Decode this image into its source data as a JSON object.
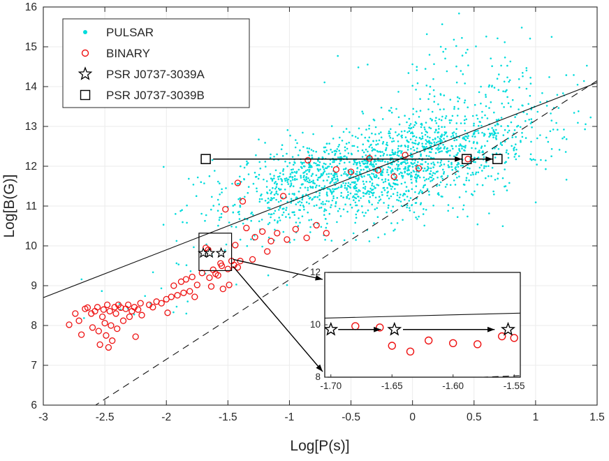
{
  "figure": {
    "background": "#ffffff"
  },
  "axes": {
    "xlabel": "Log[P(s)]",
    "ylabel": "Log[B(G)]"
  },
  "colors": {
    "pulsar": "#00dcdc",
    "binary": "#ee1111",
    "line": "#111111",
    "grid": "#ebebeb",
    "frame": "#262626"
  },
  "legend": {
    "entries": [
      {
        "label": "PULSAR",
        "marker": "cyan-dot"
      },
      {
        "label": "BINARY",
        "marker": "red-open-circle"
      },
      {
        "label": "PSR J0737-3039A",
        "marker": "black-star"
      },
      {
        "label": "PSR J0737-3039B",
        "marker": "black-square"
      }
    ]
  },
  "chart_data": {
    "type": "scatter",
    "title": "",
    "xlabel": "Log[P(s)]",
    "ylabel": "Log[B(G)]",
    "xlim": [
      -3,
      1.5
    ],
    "ylim": [
      6,
      16
    ],
    "xtick_labels": [
      "-3",
      "-2.5",
      "-2",
      "-1.5",
      "-1",
      "-0.5",
      "0",
      "0.5",
      "1",
      "1.5"
    ],
    "ytick_labels": [
      "6",
      "7",
      "8",
      "9",
      "10",
      "11",
      "12",
      "13",
      "14",
      "15",
      "16"
    ],
    "grid": true,
    "series": [
      {
        "name": "PULSAR",
        "marker": "dot",
        "color": "#00dcdc",
        "generated": true,
        "seed": 1337,
        "clusters": [
          {
            "n": 1400,
            "cx": -0.25,
            "cy": 11.95,
            "sx": 0.62,
            "sy": 0.52,
            "tilt": 0.55
          },
          {
            "n": 260,
            "cx": 0.45,
            "cy": 13.05,
            "sx": 0.5,
            "sy": 0.7,
            "tilt": 0.8
          },
          {
            "n": 130,
            "cx": -1.05,
            "cy": 11.1,
            "sx": 0.45,
            "sy": 0.5,
            "tilt": 0.6
          },
          {
            "n": 45,
            "cx": 0.3,
            "cy": 14.55,
            "sx": 0.45,
            "sy": 0.45,
            "tilt": 0.3
          },
          {
            "n": 55,
            "cx": -0.55,
            "cy": 10.7,
            "sx": 0.55,
            "sy": 0.3,
            "tilt": 0.4
          },
          {
            "n": 14,
            "cx": -1.9,
            "cy": 8.95,
            "sx": 0.45,
            "sy": 0.4,
            "tilt": 0.3
          },
          {
            "n": 8,
            "cx": -2.35,
            "cy": 8.55,
            "sx": 0.25,
            "sy": 0.3,
            "tilt": 0
          }
        ]
      },
      {
        "name": "BINARY",
        "marker": "open-circle",
        "color": "#ee1111",
        "points": [
          [
            -2.79,
            8.02
          ],
          [
            -2.74,
            8.3
          ],
          [
            -2.71,
            8.12
          ],
          [
            -2.69,
            7.77
          ],
          [
            -2.66,
            8.42
          ],
          [
            -2.64,
            8.45
          ],
          [
            -2.61,
            8.3
          ],
          [
            -2.6,
            7.95
          ],
          [
            -2.58,
            8.36
          ],
          [
            -2.56,
            8.46
          ],
          [
            -2.55,
            7.86
          ],
          [
            -2.54,
            7.52
          ],
          [
            -2.52,
            8.22
          ],
          [
            -2.51,
            8.4
          ],
          [
            -2.5,
            8.06
          ],
          [
            -2.49,
            7.75
          ],
          [
            -2.48,
            8.52
          ],
          [
            -2.47,
            7.45
          ],
          [
            -2.46,
            8.36
          ],
          [
            -2.45,
            8.0
          ],
          [
            -2.44,
            7.62
          ],
          [
            -2.42,
            8.46
          ],
          [
            -2.41,
            8.3
          ],
          [
            -2.4,
            7.92
          ],
          [
            -2.39,
            8.52
          ],
          [
            -2.37,
            8.45
          ],
          [
            -2.35,
            8.12
          ],
          [
            -2.33,
            8.42
          ],
          [
            -2.31,
            8.52
          ],
          [
            -2.3,
            8.22
          ],
          [
            -2.28,
            8.36
          ],
          [
            -2.26,
            8.46
          ],
          [
            -2.25,
            7.72
          ],
          [
            -2.23,
            8.4
          ],
          [
            -2.21,
            8.56
          ],
          [
            -2.2,
            8.26
          ],
          [
            -2.14,
            8.52
          ],
          [
            -2.11,
            8.46
          ],
          [
            -2.08,
            8.6
          ],
          [
            -2.04,
            8.56
          ],
          [
            -2.0,
            8.66
          ],
          [
            -1.99,
            8.32
          ],
          [
            -1.96,
            8.72
          ],
          [
            -1.94,
            9.0
          ],
          [
            -1.91,
            8.76
          ],
          [
            -1.88,
            9.1
          ],
          [
            -1.86,
            8.82
          ],
          [
            -1.84,
            9.16
          ],
          [
            -1.81,
            8.86
          ],
          [
            -1.79,
            9.22
          ],
          [
            -1.77,
            8.72
          ],
          [
            -1.75,
            9.02
          ],
          [
            -1.71,
            9.32
          ],
          [
            -1.68,
            9.95
          ],
          [
            -1.66,
            9.9
          ],
          [
            -1.65,
            9.2
          ],
          [
            -1.635,
            8.98
          ],
          [
            -1.62,
            9.4
          ],
          [
            -1.6,
            9.3
          ],
          [
            -1.58,
            9.26
          ],
          [
            -1.56,
            9.56
          ],
          [
            -1.55,
            9.5
          ],
          [
            -1.54,
            8.92
          ],
          [
            -1.5,
            9.42
          ],
          [
            -1.49,
            9.02
          ],
          [
            -1.47,
            9.62
          ],
          [
            -1.45,
            9.52
          ],
          [
            -1.44,
            10.02
          ],
          [
            -1.42,
            9.46
          ],
          [
            -1.4,
            9.62
          ],
          [
            -1.52,
            10.92
          ],
          [
            -1.42,
            11.58
          ],
          [
            -1.38,
            11.12
          ],
          [
            -1.35,
            10.45
          ],
          [
            -1.3,
            9.66
          ],
          [
            -1.28,
            10.22
          ],
          [
            -1.22,
            10.36
          ],
          [
            -1.18,
            9.86
          ],
          [
            -1.15,
            10.12
          ],
          [
            -1.1,
            10.32
          ],
          [
            -1.05,
            11.25
          ],
          [
            -1.02,
            10.16
          ],
          [
            -0.95,
            10.42
          ],
          [
            -0.86,
            10.2
          ],
          [
            -0.78,
            10.52
          ],
          [
            -0.7,
            10.32
          ],
          [
            -0.85,
            12.15
          ],
          [
            -0.62,
            11.92
          ],
          [
            -0.5,
            11.86
          ],
          [
            -0.35,
            12.2
          ],
          [
            -0.28,
            11.9
          ],
          [
            -0.15,
            11.74
          ],
          [
            -0.06,
            12.28
          ],
          [
            0.05,
            11.95
          ],
          [
            0.45,
            12.18
          ]
        ]
      },
      {
        "name": "PSR J0737-3039A",
        "marker": "star",
        "color": "#000000",
        "points": [
          [
            -1.7,
            9.82
          ],
          [
            -1.648,
            9.82
          ],
          [
            -1.555,
            9.82
          ]
        ]
      },
      {
        "name": "PSR J0737-3039B",
        "marker": "square",
        "color": "#000000",
        "points": [
          [
            -1.68,
            12.18
          ],
          [
            0.44,
            12.18
          ],
          [
            0.69,
            12.18
          ]
        ]
      }
    ],
    "reference_lines": [
      {
        "name": "solid-line",
        "style": "solid",
        "slope": 1.2,
        "intercept": 12.3
      },
      {
        "name": "death-line",
        "style": "dashed",
        "slope": 2.0,
        "intercept": 11.15
      }
    ],
    "annotations": {
      "evolution_arrows": [
        {
          "y": 12.18,
          "x1": -1.62,
          "x2": 0.402
        },
        {
          "y": 12.18,
          "x1": 0.475,
          "x2": 0.652
        }
      ],
      "zoom_box": {
        "x1": -1.735,
        "x2": -1.47,
        "y1": 9.38,
        "y2": 10.32
      },
      "inset": {
        "xlim": [
          -1.705,
          -1.545
        ],
        "ylim": [
          8,
          12
        ],
        "xtick_labels": [
          "-1.70",
          "-1.65",
          "-1.60",
          "-1.55"
        ],
        "ytick_labels": [
          "8",
          "10",
          "12"
        ],
        "arrows": [
          {
            "y": 9.82,
            "x1": -1.694,
            "x2": -1.659
          },
          {
            "y": 9.82,
            "x1": -1.641,
            "x2": -1.566
          }
        ]
      }
    }
  }
}
